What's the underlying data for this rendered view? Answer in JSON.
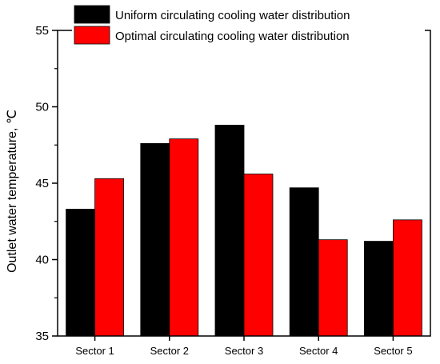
{
  "chart_data": {
    "type": "bar",
    "title": "",
    "xlabel": "",
    "ylabel": "Outlet water temperature, ℃",
    "categories": [
      "Sector 1",
      "Sector 2",
      "Sector 3",
      "Sector 4",
      "Sector 5"
    ],
    "series": [
      {
        "name": "Uniform circulating cooling water distribution",
        "color": "#000000",
        "values": [
          43.3,
          47.6,
          48.8,
          44.7,
          41.2
        ]
      },
      {
        "name": "Optimal circulating cooling water distribution",
        "color": "#ff0000",
        "values": [
          45.3,
          47.9,
          45.6,
          41.3,
          42.6
        ]
      }
    ],
    "ylim": [
      35,
      55
    ],
    "yticks": [
      35,
      40,
      45,
      50,
      55
    ],
    "grid": false,
    "legend_position": "top-right"
  }
}
